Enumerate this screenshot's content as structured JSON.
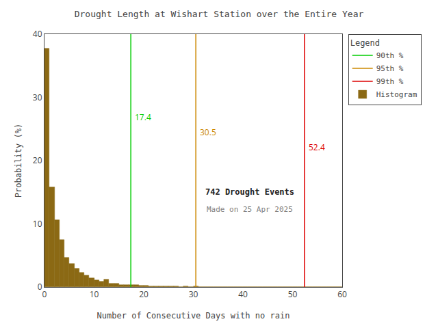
{
  "chart_data": {
    "type": "histogram",
    "title": "Drought Length at Wishart Station over the Entire Year",
    "xlabel": "Number of Consecutive Days with no rain",
    "ylabel": "Probability (%)",
    "name": "Histogram",
    "color": "#8B6914",
    "bins": [
      0,
      1,
      2,
      3,
      4,
      5,
      6,
      7,
      8,
      9,
      10,
      11,
      12,
      13,
      14,
      15,
      16,
      17,
      18,
      19,
      20,
      21,
      22,
      23,
      24,
      25,
      26,
      27,
      28,
      29,
      30,
      31,
      32,
      33,
      34,
      35,
      36,
      37,
      38,
      39,
      40,
      41,
      42,
      43,
      44,
      45,
      46,
      47,
      48,
      49,
      50,
      51,
      52,
      53,
      54,
      55,
      56,
      57,
      58,
      59,
      60
    ],
    "values": [
      37.7,
      15.8,
      10.6,
      7.5,
      4.7,
      3.7,
      2.9,
      2.3,
      1.8,
      1.4,
      1.1,
      0.9,
      1.2,
      0.5,
      0.5,
      0.3,
      0.3,
      0.3,
      0.3,
      0.2,
      0.2,
      0.1,
      0.1,
      0.1,
      0.1,
      0.1,
      0.1,
      0.05,
      0.1,
      0.05,
      0.1,
      0.05,
      0.05,
      0.0,
      0.0,
      0.0,
      0.0,
      0.0,
      0.0,
      0.0,
      0.0,
      0.0,
      0.0,
      0.0,
      0.0,
      0.0,
      0.0,
      0.0,
      0.0,
      0.0,
      0.0,
      0.0,
      0.0,
      0.0,
      0.0,
      0.0,
      0.0,
      0.0,
      0.0,
      0.0
    ],
    "vlines": [
      {
        "name": "90th %",
        "x": 17.4,
        "color": "#00cc00"
      },
      {
        "name": "95th %",
        "x": 30.5,
        "color": "#cc8800"
      },
      {
        "name": "99th %",
        "x": 52.4,
        "color": "#dd0000"
      }
    ],
    "legend_title": "Legend",
    "legend": "upper right",
    "annotations": [
      "742 Drought Events",
      "Made on 25 Apr 2025"
    ],
    "xlim": [
      0,
      60
    ],
    "ylim": [
      0,
      40
    ],
    "xticks": [
      0,
      10,
      20,
      30,
      40,
      50,
      60
    ],
    "yticks": [
      0,
      10,
      20,
      30,
      40
    ],
    "grid": false
  }
}
